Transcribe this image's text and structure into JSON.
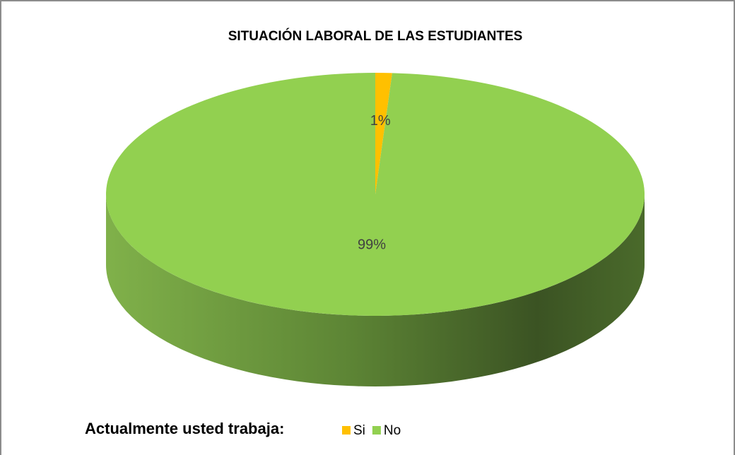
{
  "chart_data": {
    "type": "pie",
    "title": "SITUACIÓN LABORAL DE LAS ESTUDIANTES",
    "legend_title": "Actualmente usted trabaja:",
    "categories": [
      "Si",
      "No"
    ],
    "values": [
      1,
      99
    ],
    "value_labels": [
      "1%",
      "99%"
    ],
    "colors": [
      "#ffc000",
      "#92d050"
    ],
    "legend": "bottom"
  }
}
